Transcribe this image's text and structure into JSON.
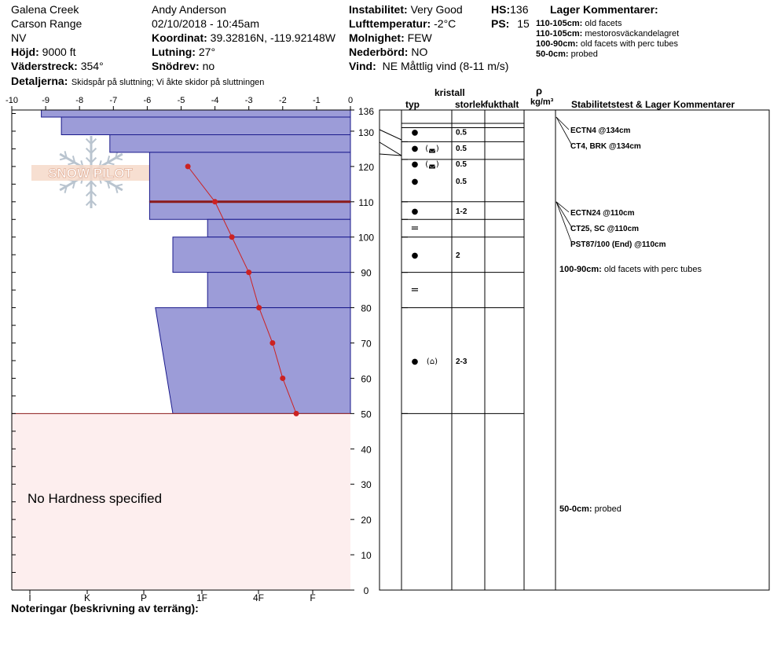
{
  "header": {
    "location": "Galena Creek",
    "range": "Carson Range",
    "state": "NV",
    "elevation_label": "Höjd:",
    "elevation_value": "9000 ft",
    "aspect_label": "Väderstreck:",
    "aspect_value": "354°",
    "details_label": "Detaljerna:",
    "details_value": "Skidspår på sluttning;  Vi åkte skidor på sluttningen",
    "observer": "Andy Anderson",
    "datetime": "02/10/2018 - 10:45am",
    "coord_label": "Koordinat:",
    "coord_value": "39.32816N, -119.92148W",
    "slope_label": "Lutning:",
    "slope_value": "27°",
    "wind_loading_label": "Snödrev:",
    "wind_loading_value": "no",
    "stability_label": "Instabilitet:",
    "stability_value": "Very Good",
    "air_temp_label": "Lufttemperatur:",
    "air_temp_value": "-2°C",
    "sky_label": "Molnighet:",
    "sky_value": "FEW",
    "precip_label": "Nederbörd:",
    "precip_value": "NO",
    "wind_label": "Vind:",
    "wind_value": "NE Måttlig vind (8-11 m/s)",
    "hs_label": "HS:",
    "hs_value": "136",
    "ps_label": "PS:",
    "ps_value": "15",
    "layer_comments_title": "Lager Kommentarer:",
    "layer_comments": [
      {
        "range": "110-105cm:",
        "text": "old facets"
      },
      {
        "range": "110-105cm:",
        "text": "mestorosväckandelagret"
      },
      {
        "range": "100-90cm:",
        "text": "old facets with perc tubes"
      },
      {
        "range": "50-0cm:",
        "text": "probed"
      }
    ]
  },
  "logo_text": "SNOW PILOT",
  "columns": {
    "kristall": "kristall",
    "typ": "typ",
    "storlek": "storlek",
    "fukthalt": "fukthalt",
    "rho": "ρ",
    "density_unit": "kg/m³",
    "stability": "Stabilitetstest & Lager Kommentarer"
  },
  "no_hardness_text": "No Hardness specified",
  "notes_label": "Noteringar (beskrivning av terräng):",
  "colors": {
    "layer_fill": "#9c9cd8",
    "layer_stroke": "#1a1a8c",
    "no_hardness_fill": "#fdeeee",
    "no_hardness_stroke": "#8b1a1a",
    "temp_line": "#cc2222",
    "weak_layer": "#8b1a1a"
  },
  "chart_data": {
    "type": "area",
    "hs": 136,
    "temp_axis": {
      "min": -10,
      "max": 0,
      "ticks": [
        -10,
        -9,
        -8,
        -7,
        -6,
        -5,
        -4,
        -3,
        -2,
        -1,
        0
      ]
    },
    "height_axis": {
      "min": 0,
      "max": 136,
      "ticks": [
        0,
        10,
        20,
        30,
        40,
        50,
        60,
        70,
        80,
        90,
        100,
        110,
        120,
        130,
        136
      ]
    },
    "hardness_ticks": [
      "I",
      "K",
      "P",
      "1F",
      "4F",
      "F"
    ],
    "hardness_layers": [
      {
        "top": 136,
        "bottom": 134,
        "hardness_index": 0.2,
        "hardness_bottom": 0.2
      },
      {
        "top": 134,
        "bottom": 129,
        "hardness_index": 0.55,
        "hardness_bottom": 0.55
      },
      {
        "top": 129,
        "bottom": 124,
        "hardness_index": 1.4,
        "hardness_bottom": 1.4
      },
      {
        "top": 124,
        "bottom": 110,
        "hardness_index": 2.1,
        "hardness_bottom": 2.1
      },
      {
        "top": 110,
        "bottom": 105,
        "hardness_index": 2.1,
        "hardness_bottom": 2.1
      },
      {
        "top": 105,
        "bottom": 100,
        "hardness_index": 3.1,
        "hardness_bottom": 3.1
      },
      {
        "top": 100,
        "bottom": 90,
        "hardness_index": 2.5,
        "hardness_bottom": 2.5
      },
      {
        "top": 90,
        "bottom": 80,
        "hardness_index": 3.1,
        "hardness_bottom": 3.1
      },
      {
        "top": 80,
        "bottom": 50,
        "hardness_index": 2.2,
        "hardness_bottom": 2.5
      }
    ],
    "weak_layer_cm": 110,
    "no_hardness_range": [
      0,
      50
    ],
    "temperature_profile": [
      {
        "height": 120,
        "temp": -4.8
      },
      {
        "height": 110,
        "temp": -4.0
      },
      {
        "height": 100,
        "temp": -3.5
      },
      {
        "height": 90,
        "temp": -3.0
      },
      {
        "height": 80,
        "temp": -2.7
      },
      {
        "height": 70,
        "temp": -2.3
      },
      {
        "height": 60,
        "temp": -2.0
      },
      {
        "height": 50,
        "temp": -1.6
      }
    ],
    "layer_boundaries": [
      136,
      131,
      127,
      122,
      110,
      105,
      100,
      90,
      80,
      50
    ],
    "grain_rows": [
      {
        "top": 136,
        "bottom": 131,
        "symbol": "●",
        "secondary": "",
        "size": "0.5"
      },
      {
        "top": 131,
        "bottom": 127,
        "symbol": "●",
        "secondary": "(◛)",
        "size": "0.5"
      },
      {
        "top": 127,
        "bottom": 122,
        "symbol": "●",
        "secondary": "(◛)",
        "size": "0.5"
      },
      {
        "top": 122,
        "bottom": 110,
        "symbol": "●",
        "secondary": "",
        "size": "0.5"
      },
      {
        "top": 110,
        "bottom": 105,
        "symbol": "●",
        "secondary": "",
        "size": "1-2"
      },
      {
        "top": 105,
        "bottom": 100,
        "symbol": "=",
        "secondary": "",
        "size": ""
      },
      {
        "top": 100,
        "bottom": 90,
        "symbol": "●",
        "secondary": "",
        "size": "2"
      },
      {
        "top": 90,
        "bottom": 80,
        "symbol": "=",
        "secondary": "",
        "size": ""
      },
      {
        "top": 80,
        "bottom": 50,
        "symbol": "●",
        "secondary": "(⌂)",
        "size": "2-3"
      }
    ],
    "stability_tests": [
      {
        "text": "ECTN4 @134cm",
        "height": 134
      },
      {
        "text": "CT4, BRK @134cm",
        "height": 134
      },
      {
        "text": "ECTN24 @110cm",
        "height": 110
      },
      {
        "text": "CT25, SC @110cm",
        "height": 110
      },
      {
        "text": "PST87/100 (End) @110cm",
        "height": 110
      }
    ],
    "layer_notes": [
      {
        "range": "100-90cm:",
        "text": "old facets with perc tubes",
        "height": 95
      },
      {
        "range": "50-0cm:",
        "text": "probed",
        "height": 25
      }
    ]
  }
}
